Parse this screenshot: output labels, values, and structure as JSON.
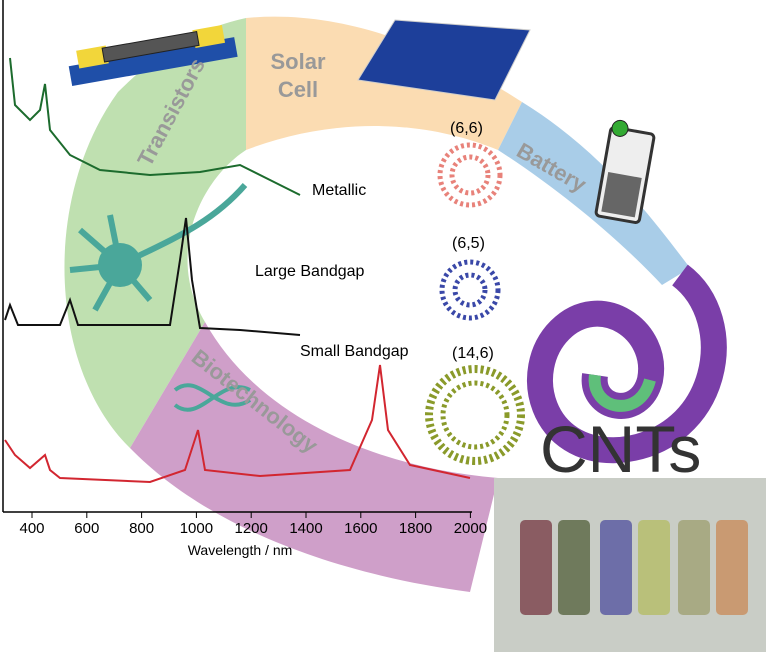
{
  "applications": {
    "transistors": "Transistors",
    "solar_cell": "Solar Cell",
    "battery": "Battery",
    "biotechnology": "Biotechnology"
  },
  "spectra": {
    "labels": [
      "Metallic",
      "Large Bandgap",
      "Small Bandgap"
    ],
    "x_axis": {
      "label": "Wavelength / nm",
      "ticks": [
        400,
        600,
        800,
        1000,
        1200,
        1400,
        1600,
        1800,
        2000
      ]
    }
  },
  "chiralities": [
    "(6,6)",
    "(6,5)",
    "(14,6)"
  ],
  "title": "CNTs"
}
